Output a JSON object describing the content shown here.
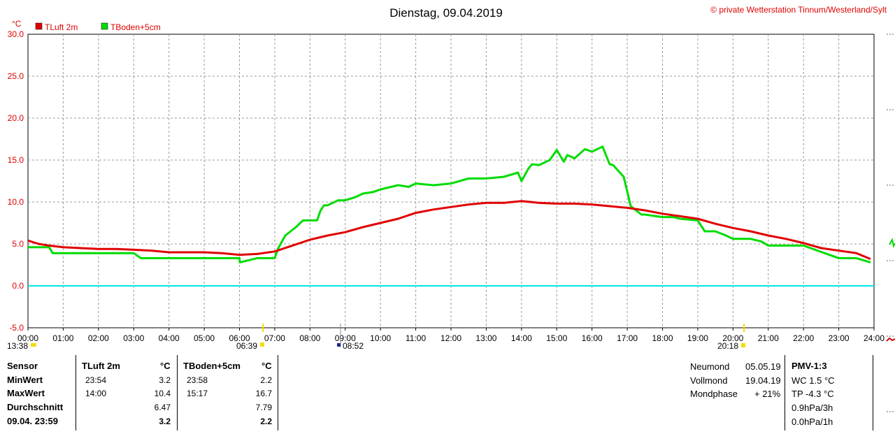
{
  "header": {
    "title": "Dienstag, 09.04.2019",
    "copyright": "© private Wetterstation Tinnum/Westerland/Sylt",
    "unit": "°C"
  },
  "chart_data": {
    "type": "line",
    "title": "Dienstag, 09.04.2019",
    "ylabel": "°C",
    "ylim": [
      -5,
      30
    ],
    "y_ticks": [
      "30.0",
      "25.0",
      "20.0",
      "15.0",
      "10.0",
      "5.0",
      "0.0",
      "-5.0"
    ],
    "x_ticks": [
      "00:00",
      "01:00",
      "02:00",
      "03:00",
      "04:00",
      "05:00",
      "06:00",
      "07:00",
      "08:00",
      "09:00",
      "10:00",
      "11:00",
      "12:00",
      "13:00",
      "14:00",
      "15:00",
      "16:00",
      "17:00",
      "18:00",
      "19:00",
      "20:00",
      "21:00",
      "22:00",
      "23:00",
      "24:00"
    ],
    "grid": true,
    "legend_position": "top-left",
    "series": [
      {
        "name": "TLuft 2m",
        "color": "#e00000",
        "x": [
          0,
          0.3,
          0.6,
          1,
          1.5,
          2,
          2.5,
          3,
          3.5,
          4,
          4.5,
          5,
          5.5,
          6,
          6.5,
          7,
          7.5,
          8,
          8.5,
          9,
          9.5,
          10,
          10.5,
          11,
          11.5,
          12,
          12.5,
          13,
          13.5,
          14,
          14.5,
          15,
          15.5,
          16,
          16.5,
          17,
          17.5,
          18,
          18.5,
          19,
          19.5,
          20,
          20.5,
          21,
          21.5,
          22,
          22.5,
          23,
          23.5,
          23.9
        ],
        "y": [
          5.4,
          5.0,
          4.8,
          4.6,
          4.5,
          4.4,
          4.4,
          4.3,
          4.2,
          4.0,
          4.0,
          4.0,
          3.9,
          3.7,
          3.8,
          4.1,
          4.8,
          5.5,
          6.0,
          6.4,
          7.0,
          7.5,
          8.0,
          8.7,
          9.1,
          9.4,
          9.7,
          9.9,
          9.9,
          10.1,
          9.9,
          9.8,
          9.8,
          9.7,
          9.5,
          9.3,
          9.0,
          8.6,
          8.3,
          8.0,
          7.4,
          6.9,
          6.5,
          6.0,
          5.6,
          5.1,
          4.5,
          4.2,
          3.9,
          3.2
        ]
      },
      {
        "name": "TBoden+5cm",
        "color": "#00dc00",
        "x": [
          0,
          0.6,
          0.7,
          1,
          2,
          3,
          3.2,
          3.3,
          4,
          5,
          6,
          6.01,
          6.5,
          7,
          7.1,
          7.3,
          7.6,
          7.8,
          8.2,
          8.3,
          8.4,
          8.5,
          8.8,
          9,
          9.3,
          9.5,
          9.8,
          10,
          10.5,
          10.8,
          11,
          11.5,
          12,
          12.5,
          13,
          13.5,
          13.9,
          14,
          14.2,
          14.3,
          14.5,
          14.8,
          15,
          15.2,
          15.3,
          15.5,
          15.8,
          16,
          16.3,
          16.5,
          16.6,
          16.9,
          17.1,
          17.25,
          17.4,
          17.5,
          18,
          18.3,
          18.5,
          19,
          19.2,
          19.5,
          19.8,
          20,
          20.5,
          20.8,
          21,
          21.5,
          22,
          22.4,
          22.6,
          23,
          23.5,
          23.9
        ],
        "y": [
          4.6,
          4.6,
          3.9,
          3.9,
          3.9,
          3.9,
          3.3,
          3.3,
          3.3,
          3.3,
          3.3,
          2.8,
          3.3,
          3.3,
          4.5,
          6.0,
          7.0,
          7.8,
          7.8,
          9.0,
          9.6,
          9.6,
          10.2,
          10.2,
          10.6,
          11.0,
          11.2,
          11.5,
          12.0,
          11.8,
          12.2,
          12.0,
          12.2,
          12.8,
          12.8,
          13.0,
          13.5,
          12.5,
          14.0,
          14.5,
          14.4,
          15.0,
          16.2,
          14.8,
          15.6,
          15.2,
          16.3,
          16.0,
          16.6,
          14.5,
          14.4,
          13.0,
          9.5,
          9.0,
          8.5,
          8.5,
          8.2,
          8.2,
          8.0,
          7.8,
          6.5,
          6.5,
          6.0,
          5.6,
          5.6,
          5.3,
          4.8,
          4.8,
          4.8,
          4.2,
          3.9,
          3.3,
          3.3,
          2.8
        ]
      },
      {
        "name": "0.0 line",
        "color": "#00e6e6",
        "x": [
          0,
          24
        ],
        "y": [
          0,
          0
        ]
      }
    ]
  },
  "markers": {
    "sunrise_left": "13:38",
    "sunrise": "06:39",
    "now": "08:52",
    "sunset": "20:18"
  },
  "stats": {
    "headers": {
      "sensor": "Sensor",
      "t1": "TLuft 2m",
      "unit1": "°C",
      "t2": "TBoden+5cm",
      "unit2": "°C"
    },
    "rows": [
      {
        "label": "MinWert",
        "t1_time": "23:54",
        "t1_val": "3.2",
        "t2_time": "23:58",
        "t2_val": "2.2"
      },
      {
        "label": "MaxWert",
        "t1_time": "14:00",
        "t1_val": "10.4",
        "t2_time": "15:17",
        "t2_val": "16.7"
      },
      {
        "label": "Durchschnitt",
        "t1_time": "",
        "t1_val": "6.47",
        "t2_time": "",
        "t2_val": "7.79"
      },
      {
        "label": "09.04. 23:59",
        "t1_time": "",
        "t1_val": "3.2",
        "t2_time": "",
        "t2_val": "2.2"
      }
    ]
  },
  "moon": {
    "rows": [
      {
        "label": "Neumond",
        "value": "05.05.19"
      },
      {
        "label": "Vollmond",
        "value": "19.04.19"
      },
      {
        "label": "Mondphase",
        "value": "+ 21%"
      }
    ]
  },
  "pmv": {
    "title": "PMV-1:3",
    "lines": [
      "WC 1.5 °C",
      "TP -4.3 °C",
      "0.9hPa/3h",
      "0.0hPa/1h"
    ]
  }
}
